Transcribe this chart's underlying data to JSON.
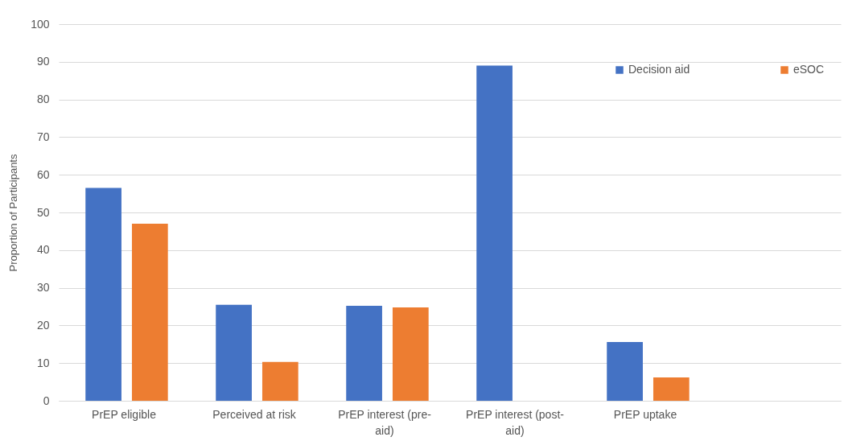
{
  "chart_data": {
    "type": "bar",
    "ylabel": "Proportion of Participants",
    "categories": [
      "PrEP eligible",
      "Perceived at risk",
      "PrEP interest (pre-aid)",
      "PrEP interest (post-aid)",
      "PrEP uptake",
      null
    ],
    "series": [
      {
        "name": "Decision aid",
        "color": "#4472c4",
        "values": [
          56.5,
          25.5,
          25.2,
          89,
          15.6,
          null
        ]
      },
      {
        "name": "eSOC",
        "color": "#ed7d31",
        "values": [
          47,
          10.3,
          24.8,
          null,
          6.2,
          null
        ]
      }
    ],
    "ylim": [
      0,
      100
    ],
    "yticks": [
      0,
      10,
      20,
      30,
      40,
      50,
      60,
      70,
      80,
      90,
      100
    ],
    "grid": "y",
    "legend": "top right"
  }
}
